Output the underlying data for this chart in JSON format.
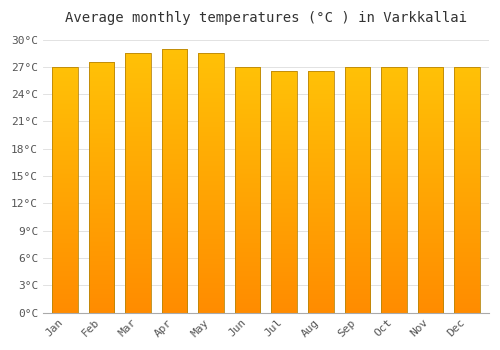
{
  "title": "Average monthly temperatures (°C ) in Varkkallai",
  "months": [
    "Jan",
    "Feb",
    "Mar",
    "Apr",
    "May",
    "Jun",
    "Jul",
    "Aug",
    "Sep",
    "Oct",
    "Nov",
    "Dec"
  ],
  "values": [
    27.0,
    27.5,
    28.5,
    29.0,
    28.5,
    27.0,
    26.5,
    26.5,
    27.0,
    27.0,
    27.0,
    27.0
  ],
  "bar_color_top": "#FFC107",
  "bar_color_bottom": "#FF8C00",
  "ylim": [
    0,
    31
  ],
  "yticks": [
    0,
    3,
    6,
    9,
    12,
    15,
    18,
    21,
    24,
    27,
    30
  ],
  "ytick_labels": [
    "0°C",
    "3°C",
    "6°C",
    "9°C",
    "12°C",
    "15°C",
    "18°C",
    "21°C",
    "24°C",
    "27°C",
    "30°C"
  ],
  "grid_color": "#dddddd",
  "plot_bg_color": "#ffffff",
  "fig_bg_color": "#ffffff",
  "title_fontsize": 10,
  "tick_fontsize": 8,
  "bar_edgecolor": "#b8860b",
  "bar_width": 0.7,
  "font_family": "monospace"
}
